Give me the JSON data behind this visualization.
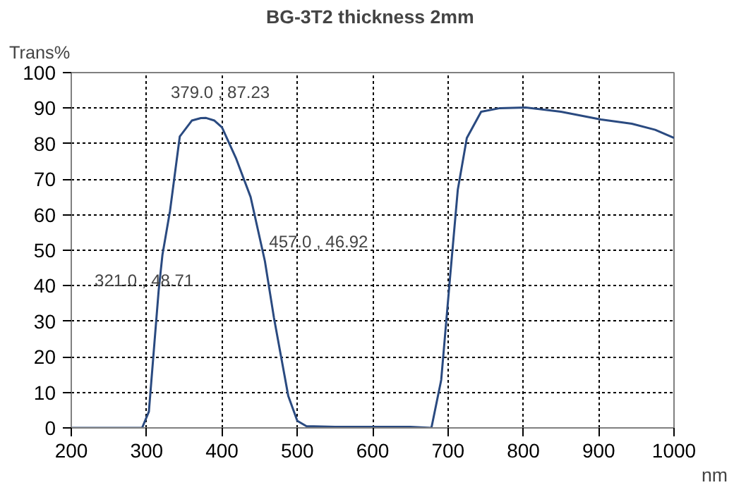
{
  "chart_data": {
    "type": "line",
    "title": "BG-3T2  thickness 2mm",
    "xlabel": "nm",
    "ylabel": "Trans%",
    "xlim": [
      200,
      1000
    ],
    "ylim": [
      0,
      100
    ],
    "xticks": [
      200,
      300,
      400,
      500,
      600,
      700,
      800,
      900,
      1000
    ],
    "yticks": [
      0,
      10,
      20,
      30,
      40,
      50,
      60,
      70,
      80,
      90,
      100
    ],
    "grid": true,
    "line_style": "solid",
    "marker": "none",
    "series": [
      {
        "color": "#2a4a80",
        "x": [
          200,
          280,
          294,
          303,
          316,
          321,
          331,
          344,
          360,
          372,
          379,
          390,
          400,
          419,
          438,
          457,
          469,
          488,
          500,
          512,
          550,
          600,
          650,
          678,
          691,
          703,
          713,
          725,
          744,
          769,
          803,
          850,
          903,
          944,
          975,
          1000
        ],
        "values": [
          0,
          0,
          0,
          4.6,
          38.7,
          48.71,
          61,
          82,
          86.5,
          87.2,
          87.23,
          86.5,
          84.6,
          75.7,
          65,
          46.92,
          31,
          9,
          2,
          0.5,
          0.3,
          0.3,
          0.3,
          0,
          13.5,
          43,
          67,
          81.6,
          89,
          90,
          90.2,
          89,
          86.8,
          85.6,
          83.9,
          81.6
        ]
      }
    ],
    "annotations": [
      {
        "text": "321.0 , 48.71",
        "x": 321,
        "y": 48.71
      },
      {
        "text": "379.0 , 87.23",
        "x": 379,
        "y": 87.23
      },
      {
        "text": "457.0 , 46.92",
        "x": 457,
        "y": 46.92
      }
    ]
  }
}
